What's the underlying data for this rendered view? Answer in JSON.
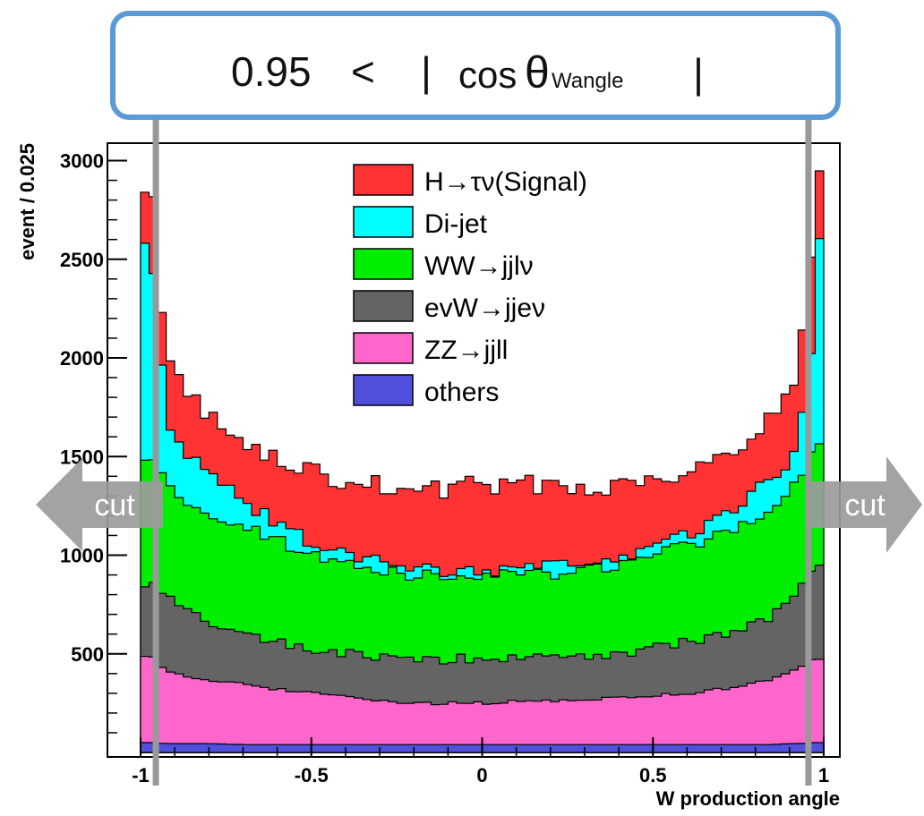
{
  "annotation": {
    "threshold": "0.95",
    "relation": "<",
    "open_bar": "|",
    "func": "cos",
    "theta": "θ",
    "subscript": "Wangle",
    "close_bar": "|"
  },
  "cut_labels": {
    "left": "cut",
    "right": "cut"
  },
  "cut_range": [
    -0.95,
    0.95
  ],
  "colors": {
    "signal": "#ff3333",
    "dijet": "#00ffff",
    "ww": "#00ee00",
    "evw": "#646464",
    "zz": "#ff66cc",
    "others": "#5050dd",
    "annotation_box": "#5b9bd5",
    "cut_marker": "#999999"
  },
  "chart_data": {
    "type": "area",
    "stacked": true,
    "xlabel": "W production angle",
    "ylabel": "event / 0.025",
    "xlim": [
      -1.0,
      1.0
    ],
    "ylim": [
      0,
      3100
    ],
    "bin_width": 0.025,
    "x_ticks": [
      -1,
      -0.5,
      0,
      0.5,
      1
    ],
    "x_tick_labels": [
      "-1",
      "-0.5",
      "0",
      "0.5",
      "1"
    ],
    "y_ticks": [
      500,
      1000,
      1500,
      2000,
      2500,
      3000
    ],
    "y_tick_labels": [
      "500",
      "1000",
      "1500",
      "2000",
      "2500",
      "3000"
    ],
    "legend_position": "top-center",
    "legend": [
      {
        "key": "signal",
        "label": "H→τν(Signal)"
      },
      {
        "key": "dijet",
        "label": "Di-jet"
      },
      {
        "key": "ww",
        "label": "WW→jjlν"
      },
      {
        "key": "evw",
        "label": "evW→jjeν"
      },
      {
        "key": "zz",
        "label": "ZZ→jjll"
      },
      {
        "key": "others",
        "label": "others"
      }
    ],
    "stack_order": [
      "others",
      "zz",
      "evw",
      "ww",
      "dijet",
      "signal"
    ],
    "cumulative_profile": {
      "x": [
        -0.99,
        -0.96,
        -0.93,
        -0.9,
        -0.85,
        -0.8,
        -0.7,
        -0.6,
        -0.5,
        -0.4,
        -0.3,
        -0.2,
        -0.1,
        0,
        0.1,
        0.2,
        0.3,
        0.4,
        0.5,
        0.6,
        0.7,
        0.8,
        0.85,
        0.9,
        0.93,
        0.96,
        0.99
      ],
      "others": [
        50,
        50,
        45,
        45,
        45,
        45,
        40,
        40,
        40,
        40,
        40,
        40,
        40,
        40,
        40,
        40,
        40,
        40,
        40,
        40,
        40,
        40,
        40,
        45,
        45,
        50,
        50
      ],
      "zz": [
        480,
        480,
        420,
        400,
        380,
        370,
        350,
        320,
        300,
        280,
        260,
        250,
        250,
        250,
        260,
        260,
        270,
        280,
        290,
        300,
        320,
        350,
        370,
        400,
        430,
        470,
        480
      ],
      "evw": [
        850,
        850,
        800,
        750,
        700,
        650,
        600,
        560,
        530,
        500,
        480,
        470,
        470,
        480,
        470,
        480,
        480,
        500,
        530,
        560,
        600,
        650,
        700,
        750,
        820,
        900,
        950
      ],
      "ww": [
        1500,
        1480,
        1380,
        1300,
        1250,
        1200,
        1150,
        1080,
        1000,
        950,
        920,
        900,
        900,
        900,
        900,
        900,
        920,
        950,
        1000,
        1050,
        1100,
        1200,
        1250,
        1300,
        1400,
        1500,
        1550
      ],
      "dijet": [
        2580,
        2400,
        1800,
        1560,
        1500,
        1420,
        1270,
        1160,
        1070,
        1000,
        960,
        930,
        920,
        920,
        930,
        940,
        960,
        980,
        1030,
        1100,
        1200,
        1320,
        1380,
        1450,
        1600,
        2000,
        2650
      ],
      "signal": [
        2840,
        2800,
        2100,
        1900,
        1800,
        1700,
        1560,
        1480,
        1420,
        1380,
        1350,
        1330,
        1340,
        1360,
        1360,
        1350,
        1340,
        1360,
        1390,
        1430,
        1510,
        1620,
        1720,
        1800,
        2000,
        2500,
        2950
      ]
    }
  }
}
